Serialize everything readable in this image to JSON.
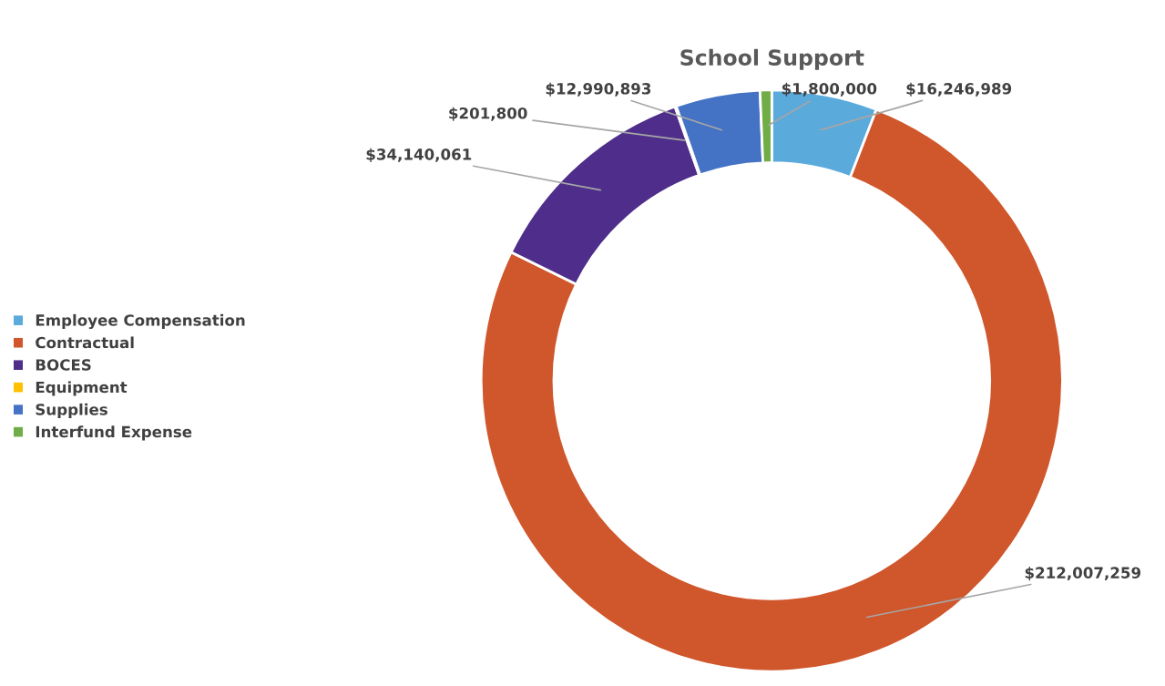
{
  "chart_data": {
    "type": "donut",
    "title": "School Support",
    "categories": [
      "Employee Compensation",
      "Contractual",
      "BOCES",
      "Equipment",
      "Supplies",
      "Interfund Expense"
    ],
    "values": [
      16246989,
      212007259,
      34140061,
      201800,
      12990893,
      1800000
    ],
    "colors": [
      "#5aaadc",
      "#d0562b",
      "#4e2e8a",
      "#ffc000",
      "#4472c4",
      "#70ad47"
    ],
    "value_labels": [
      "$16,246,989",
      "$212,007,259",
      "$34,140,061",
      "$201,800",
      "$12,990,893",
      "$1,800,000"
    ],
    "legend": "left"
  }
}
